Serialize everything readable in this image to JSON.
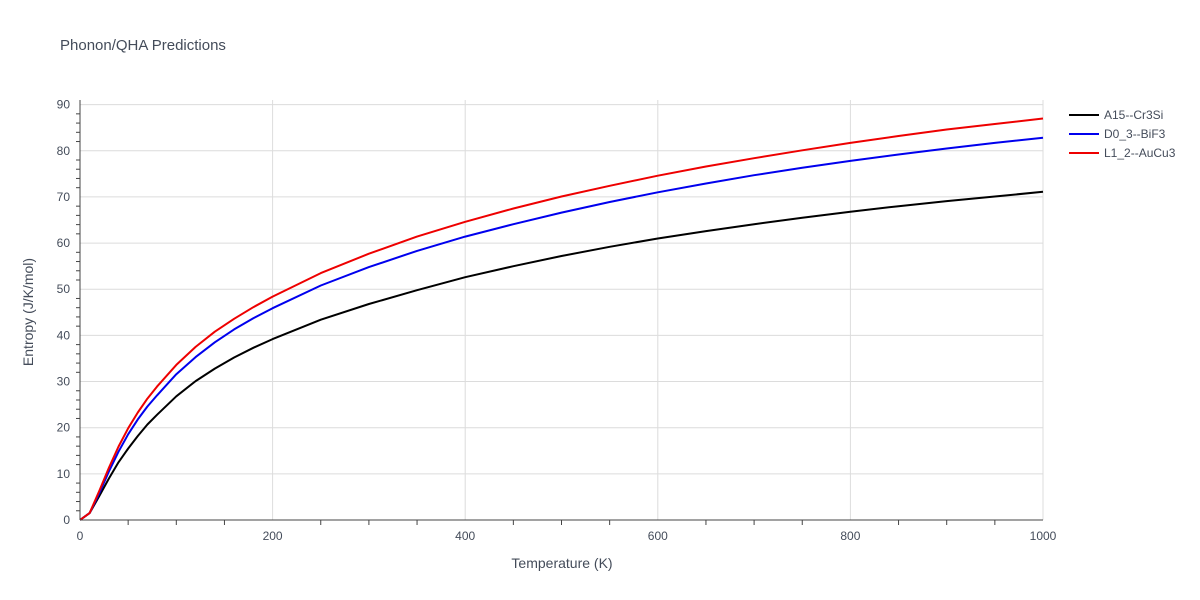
{
  "chart_data": {
    "type": "line",
    "title": "Phonon/QHA Predictions",
    "xlabel": "Temperature (K)",
    "ylabel": "Entropy (J/K/mol)",
    "xlim": [
      0,
      1000
    ],
    "ylim": [
      0,
      91
    ],
    "xticks": [
      0,
      200,
      400,
      600,
      800,
      1000
    ],
    "yticks": [
      0,
      10,
      20,
      30,
      40,
      50,
      60,
      70,
      80,
      90
    ],
    "grid": true,
    "legend_position": "top-right",
    "series": [
      {
        "name": "A15--Cr3Si",
        "color": "#000000",
        "x": [
          0,
          10,
          20,
          30,
          40,
          50,
          60,
          70,
          80,
          100,
          120,
          140,
          160,
          180,
          200,
          250,
          300,
          350,
          400,
          450,
          500,
          550,
          600,
          650,
          700,
          750,
          800,
          850,
          900,
          950,
          1000
        ],
        "y": [
          0,
          1.5,
          5.2,
          9.0,
          12.5,
          15.5,
          18.2,
          20.7,
          22.8,
          26.8,
          30.1,
          32.8,
          35.2,
          37.3,
          39.2,
          43.4,
          46.8,
          49.8,
          52.6,
          55.0,
          57.2,
          59.2,
          61.0,
          62.6,
          64.1,
          65.5,
          66.8,
          68.0,
          69.1,
          70.1,
          71.1
        ]
      },
      {
        "name": "D0_3--BiF3",
        "color": "#0000ee",
        "x": [
          0,
          10,
          20,
          30,
          40,
          50,
          60,
          70,
          80,
          100,
          120,
          140,
          160,
          180,
          200,
          250,
          300,
          350,
          400,
          450,
          500,
          550,
          600,
          650,
          700,
          750,
          800,
          850,
          900,
          950,
          1000
        ],
        "y": [
          0,
          1.5,
          5.8,
          10.5,
          14.8,
          18.6,
          21.8,
          24.6,
          27.0,
          31.6,
          35.3,
          38.5,
          41.3,
          43.7,
          45.9,
          50.8,
          54.8,
          58.3,
          61.4,
          64.1,
          66.6,
          68.9,
          71.0,
          72.9,
          74.7,
          76.3,
          77.8,
          79.2,
          80.5,
          81.7,
          82.8
        ]
      },
      {
        "name": "L1_2--AuCu3",
        "color": "#ee0000",
        "x": [
          0,
          10,
          20,
          30,
          40,
          50,
          60,
          70,
          80,
          100,
          120,
          140,
          160,
          180,
          200,
          250,
          300,
          350,
          400,
          450,
          500,
          550,
          600,
          650,
          700,
          750,
          800,
          850,
          900,
          950,
          1000
        ],
        "y": [
          0,
          1.5,
          6.3,
          11.3,
          15.9,
          19.9,
          23.3,
          26.3,
          28.9,
          33.6,
          37.5,
          40.8,
          43.6,
          46.1,
          48.4,
          53.5,
          57.7,
          61.4,
          64.6,
          67.5,
          70.1,
          72.4,
          74.6,
          76.6,
          78.4,
          80.1,
          81.7,
          83.2,
          84.6,
          85.8,
          87.0
        ]
      }
    ]
  }
}
